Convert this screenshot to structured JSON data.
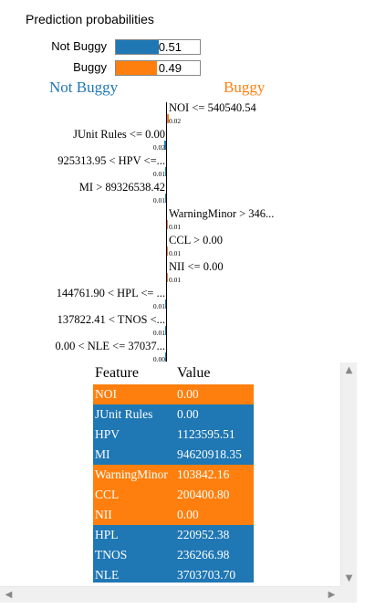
{
  "proba": {
    "title": "Prediction probabilities",
    "items": [
      {
        "label": "Not Buggy",
        "value_text": "0.51",
        "value": 0.51,
        "color": "#1f77b4"
      },
      {
        "label": "Buggy",
        "value_text": "0.49",
        "value": 0.49,
        "color": "#ff7f0e"
      }
    ]
  },
  "explain": {
    "negative_label": "Not Buggy",
    "positive_label": "Buggy",
    "negative_color": "#1f77b4",
    "positive_color": "#ff7f0e",
    "features": [
      {
        "label": "NOI <= 540540.54",
        "weight_text": "0.02",
        "weight": 0.02,
        "side": "positive"
      },
      {
        "label": "JUnit Rules <= 0.00",
        "weight_text": "0.02",
        "weight": 0.02,
        "side": "negative"
      },
      {
        "label": "925313.95 < HPV <=...",
        "weight_text": "0.01",
        "weight": 0.01,
        "side": "negative"
      },
      {
        "label": "MI > 89326538.42",
        "weight_text": "0.01",
        "weight": 0.01,
        "side": "negative"
      },
      {
        "label": "WarningMinor > 346...",
        "weight_text": "0.01",
        "weight": 0.01,
        "side": "positive"
      },
      {
        "label": "CCL > 0.00",
        "weight_text": "0.01",
        "weight": 0.01,
        "side": "positive"
      },
      {
        "label": "NII <= 0.00",
        "weight_text": "0.01",
        "weight": 0.01,
        "side": "positive"
      },
      {
        "label": "144761.90 < HPL <= ...",
        "weight_text": "0.01",
        "weight": 0.01,
        "side": "negative"
      },
      {
        "label": "137822.41 < TNOS <...",
        "weight_text": "0.01",
        "weight": 0.01,
        "side": "negative"
      },
      {
        "label": "0.00 < NLE <= 37037...",
        "weight_text": "0.00",
        "weight": 0.0,
        "side": "negative"
      }
    ]
  },
  "table": {
    "headers": [
      "Feature",
      "Value"
    ],
    "rows": [
      {
        "feature": "NOI",
        "value": "0.00",
        "side": "positive"
      },
      {
        "feature": "JUnit Rules",
        "value": "0.00",
        "side": "negative"
      },
      {
        "feature": "HPV",
        "value": "1123595.51",
        "side": "negative"
      },
      {
        "feature": "MI",
        "value": "94620918.35",
        "side": "negative"
      },
      {
        "feature": "WarningMinor",
        "value": "103842.16",
        "side": "positive"
      },
      {
        "feature": "CCL",
        "value": "200400.80",
        "side": "positive"
      },
      {
        "feature": "NII",
        "value": "0.00",
        "side": "positive"
      },
      {
        "feature": "HPL",
        "value": "220952.38",
        "side": "negative"
      },
      {
        "feature": "TNOS",
        "value": "236266.98",
        "side": "negative"
      },
      {
        "feature": "NLE",
        "value": "3703703.70",
        "side": "negative"
      }
    ]
  },
  "scrollbars": {
    "up_icon": "arrow-up-icon",
    "down_icon": "arrow-down-icon",
    "left_icon": "arrow-left-icon",
    "right_icon": "arrow-right-icon"
  }
}
